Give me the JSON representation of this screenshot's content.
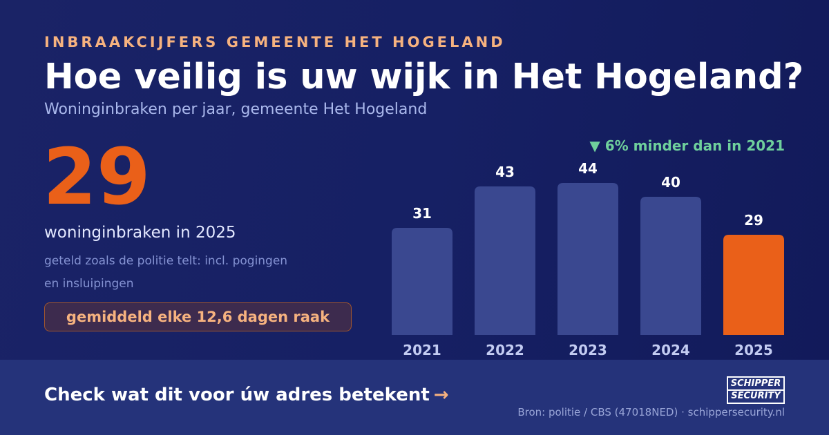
{
  "header": {
    "eyebrow": "INBRAAKCIJFERS GEMEENTE HET HOGELAND",
    "title": "Hoe veilig is uw wijk in Het Hogeland?",
    "subtitle": "Woninginbraken per jaar, gemeente Het Hogeland"
  },
  "highlight": {
    "value": "29",
    "caption": "woninginbraken in 2025",
    "note": "geteld zoals de politie telt: incl. pogingen en insluipingen",
    "badge": "gemiddeld elke 12,6 dagen raak"
  },
  "change_label": "▼ 6% minder dan in 2021",
  "chart_data": {
    "type": "bar",
    "categories": [
      "2021",
      "2022",
      "2023",
      "2024",
      "2025"
    ],
    "values": [
      31,
      43,
      44,
      40,
      29
    ],
    "ylim": [
      0,
      44
    ],
    "grid": false,
    "colors": {
      "bar": "#3a4890",
      "highlight": "#ea6019"
    },
    "highlight_index": 4
  },
  "footer": {
    "cta": "Check wat dit voor úw adres betekent",
    "cta_arrow": "→",
    "source": "Bron: politie / CBS (47018NED) · schippersecurity.nl",
    "logo_top": "SCHIPPER",
    "logo_bottom": "SECURITY"
  },
  "colors": {
    "background": "#162064",
    "accent": "#ea6019",
    "accent_light": "#f6b27f",
    "positive": "#6fd09c"
  }
}
